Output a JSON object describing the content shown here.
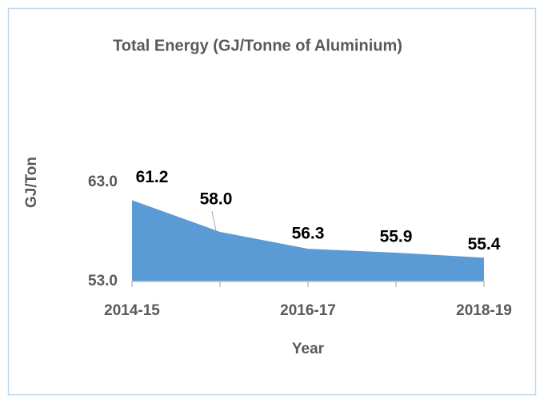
{
  "chart_data": {
    "type": "area",
    "title": "Total Energy (GJ/Tonne of Aluminium)",
    "x_label": "Year",
    "y_label": "GJ/Ton",
    "categories": [
      "2014-15",
      null,
      "2016-17",
      null,
      "2018-19"
    ],
    "values": [
      61.2,
      58,
      56.3,
      55.9,
      55.4
    ],
    "value_labels": [
      "61.2",
      "58.0",
      "56.3",
      "55.9",
      "55.4"
    ],
    "color": "#5b9bd5",
    "ylim": [
      53,
      63
    ],
    "yticks": [
      {
        "value": 53,
        "label": "53.0"
      },
      {
        "value": 63,
        "label": "63.0"
      }
    ]
  }
}
